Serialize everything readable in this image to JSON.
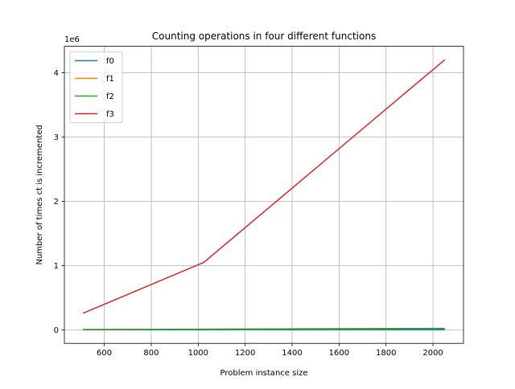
{
  "chart_data": {
    "type": "line",
    "title": "Counting operations in four different functions",
    "xlabel": "Problem instance size",
    "ylabel": "Number of times ct is incremented",
    "y_offset_text": "1e6",
    "xlim": [
      430,
      2130
    ],
    "ylim": [
      -0.21,
      4.41
    ],
    "x_ticks": [
      600,
      800,
      1000,
      1200,
      1400,
      1600,
      1800,
      2000
    ],
    "x_tick_labels": [
      "600",
      "800",
      "1000",
      "1200",
      "1400",
      "1600",
      "1800",
      "2000"
    ],
    "y_ticks": [
      0,
      1,
      2,
      3,
      4
    ],
    "y_tick_labels": [
      "0",
      "1",
      "2",
      "3",
      "4"
    ],
    "grid": true,
    "legend_position": "top-left",
    "x": [
      512,
      1024,
      2048
    ],
    "series": [
      {
        "name": "f0",
        "color": "#1f77b4",
        "values": [
          0.0005,
          0.001,
          0.002
        ]
      },
      {
        "name": "f1",
        "color": "#ff7f0e",
        "values": [
          0.0045,
          0.01,
          0.0225
        ]
      },
      {
        "name": "f2",
        "color": "#2ca02c",
        "values": [
          0.0045,
          0.0102,
          0.0226
        ]
      },
      {
        "name": "f3",
        "color": "#d62728",
        "values": [
          0.262,
          1.049,
          4.194
        ]
      }
    ]
  }
}
